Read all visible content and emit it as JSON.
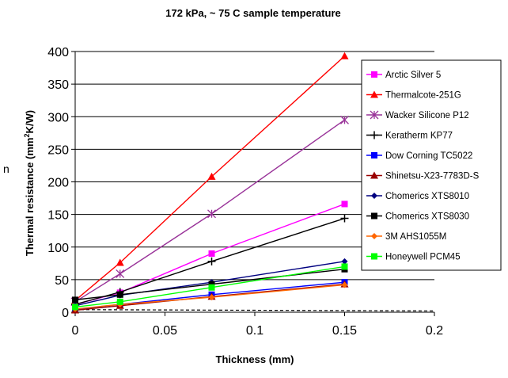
{
  "chart_data": {
    "type": "line",
    "title": "172 kPa, ~ 75 C sample temperature",
    "xlabel": "Thickness (mm)",
    "ylabel_main": "Thermal resistance (mm",
    "ylabel_sup": "2",
    "ylabel_end": "K/W)",
    "edge_fragment": "n",
    "xlim": [
      0,
      0.2
    ],
    "ylim": [
      0,
      400
    ],
    "x_ticks": [
      0,
      0.05,
      0.1,
      0.15,
      0.2
    ],
    "x_tick_labels": [
      "0",
      "0.05",
      "0.1",
      "0.15",
      "0.2"
    ],
    "y_ticks": [
      0,
      50,
      100,
      150,
      200,
      250,
      300,
      350,
      400
    ],
    "y_tick_labels": [
      "0",
      "50",
      "100",
      "150",
      "200",
      "250",
      "300",
      "350",
      "400"
    ],
    "grid": "horizontal",
    "legend_position": "right",
    "series": [
      {
        "name": "Arctic Silver 5",
        "color": "#ff00ff",
        "marker": "square",
        "x": [
          0,
          0.025,
          0.076,
          0.15
        ],
        "y": [
          12,
          30,
          90,
          166
        ]
      },
      {
        "name": "Thermalcote-251G",
        "color": "#ff0000",
        "marker": "triangle",
        "x": [
          0,
          0.025,
          0.076,
          0.15
        ],
        "y": [
          18,
          76,
          208,
          393
        ]
      },
      {
        "name": "Wacker Silicone P12",
        "color": "#993399",
        "marker": "star",
        "x": [
          0,
          0.025,
          0.076,
          0.15
        ],
        "y": [
          16,
          59,
          151,
          295
        ]
      },
      {
        "name": "Keratherm KP77",
        "color": "#000000",
        "marker": "plus",
        "x": [
          0,
          0.025,
          0.076,
          0.15
        ],
        "y": [
          12,
          31,
          78,
          144
        ]
      },
      {
        "name": "Dow Corning TC5022",
        "color": "#0000ff",
        "marker": "square",
        "x": [
          0,
          0.025,
          0.076,
          0.15
        ],
        "y": [
          4,
          12,
          27,
          46
        ]
      },
      {
        "name": "Shinetsu-X23-7783D-S",
        "color": "#990000",
        "marker": "triangle",
        "x": [
          0,
          0.025,
          0.076,
          0.15
        ],
        "y": [
          3,
          10,
          24,
          43
        ]
      },
      {
        "name": "Chomerics XTS8010",
        "color": "#000080",
        "marker": "diamond",
        "x": [
          0,
          0.025,
          0.076,
          0.15
        ],
        "y": [
          10,
          26,
          46,
          78
        ]
      },
      {
        "name": "Chomerics XTS8030",
        "color": "#000000",
        "marker": "square",
        "x": [
          0,
          0.025,
          0.076,
          0.15
        ],
        "y": [
          19,
          27,
          43,
          66
        ]
      },
      {
        "name": "3M AHS1055M",
        "color": "#ff6600",
        "marker": "diamond",
        "x": [
          0,
          0.025,
          0.076,
          0.15
        ],
        "y": [
          5,
          12,
          23,
          42
        ]
      },
      {
        "name": "Honeywell PCM45",
        "color": "#00ff00",
        "marker": "square",
        "x": [
          0,
          0.025,
          0.076,
          0.15
        ],
        "y": [
          8,
          16,
          38,
          70
        ]
      }
    ],
    "reference_line": {
      "name": "dashed baseline",
      "color": "#000000",
      "x": [
        0,
        0.2
      ],
      "y": [
        4,
        2
      ]
    }
  }
}
